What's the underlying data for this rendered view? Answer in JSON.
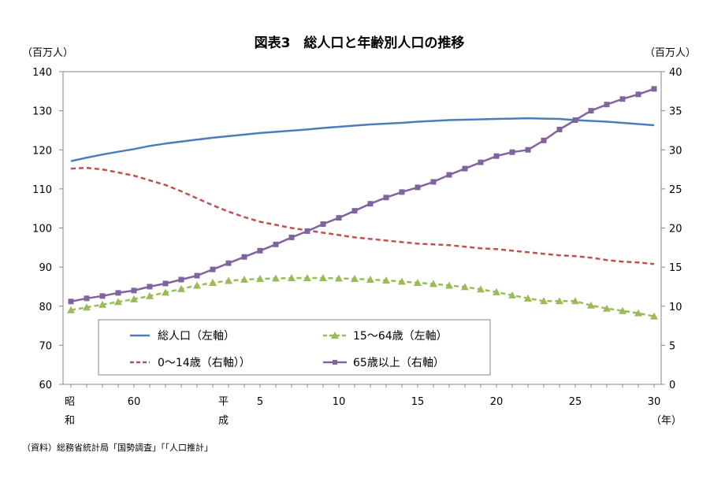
{
  "chart_data": {
    "type": "line",
    "title": "図表3　総人口と年齢別人口の推移",
    "left_unit": "（百万人）",
    "right_unit": "（百万人）",
    "year_unit": "（年）",
    "source": "（資料）総務省統計局「国勢調査」「「人口推計」",
    "era_labels": {
      "showa": [
        "昭",
        "和"
      ],
      "heisei": [
        "平",
        "成"
      ]
    },
    "x_tick_labels": [
      "60",
      "5",
      "10",
      "15",
      "20",
      "25",
      "30"
    ],
    "years": [
      "S56",
      "S57",
      "S58",
      "S59",
      "S60",
      "S61",
      "S62",
      "S63",
      "H1",
      "H2",
      "H3",
      "H4",
      "H5",
      "H6",
      "H7",
      "H8",
      "H9",
      "H10",
      "H11",
      "H12",
      "H13",
      "H14",
      "H15",
      "H16",
      "H17",
      "H18",
      "H19",
      "H20",
      "H21",
      "H22",
      "H23",
      "H24",
      "H25",
      "H26",
      "H27",
      "H28",
      "H29",
      "H30"
    ],
    "ylim_left": [
      60,
      140
    ],
    "ylim_right": [
      0,
      40
    ],
    "yticks_left": [
      "60",
      "70",
      "80",
      "90",
      "100",
      "110",
      "120",
      "130",
      "140"
    ],
    "yticks_right": [
      "0",
      "5",
      "10",
      "15",
      "20",
      "25",
      "30",
      "35",
      "40"
    ],
    "series": [
      {
        "name": "総人口（左軸）",
        "axis": "left",
        "color": "#4a7ebb",
        "style": "solid",
        "marker": "none",
        "values": [
          117.1,
          118.0,
          118.8,
          119.5,
          120.2,
          121.0,
          121.6,
          122.1,
          122.6,
          123.1,
          123.5,
          123.9,
          124.3,
          124.6,
          124.9,
          125.2,
          125.6,
          125.9,
          126.2,
          126.5,
          126.7,
          126.9,
          127.2,
          127.4,
          127.6,
          127.7,
          127.8,
          127.9,
          128.0,
          128.1,
          128.0,
          127.9,
          127.6,
          127.4,
          127.2,
          126.9,
          126.6,
          126.3
        ]
      },
      {
        "name": "15～64歳（左軸）",
        "axis": "left",
        "color": "#9bbb59",
        "style": "dashed",
        "marker": "triangle",
        "values": [
          79.0,
          79.7,
          80.4,
          81.1,
          81.8,
          82.6,
          83.5,
          84.4,
          85.3,
          86.0,
          86.5,
          86.8,
          87.0,
          87.1,
          87.2,
          87.2,
          87.2,
          87.1,
          87.0,
          86.8,
          86.6,
          86.3,
          86.0,
          85.7,
          85.3,
          84.9,
          84.3,
          83.6,
          82.8,
          82.0,
          81.3,
          81.3,
          81.3,
          80.2,
          79.4,
          78.8,
          78.2,
          77.4
        ]
      },
      {
        "name": "0～14歳（右軸））",
        "axis": "right",
        "color": "#c0504d",
        "style": "dashed",
        "marker": "none",
        "values": [
          27.6,
          27.7,
          27.5,
          27.1,
          26.7,
          26.1,
          25.5,
          24.7,
          23.8,
          22.9,
          22.1,
          21.4,
          20.8,
          20.4,
          20.0,
          19.7,
          19.4,
          19.1,
          18.8,
          18.6,
          18.4,
          18.2,
          18.0,
          17.9,
          17.8,
          17.6,
          17.4,
          17.3,
          17.1,
          16.9,
          16.7,
          16.5,
          16.4,
          16.2,
          15.9,
          15.7,
          15.6,
          15.4
        ]
      },
      {
        "name": "65歳以上（右軸）",
        "axis": "right",
        "color": "#8064a2",
        "style": "solid",
        "marker": "square",
        "values": [
          10.6,
          11.0,
          11.3,
          11.7,
          12.0,
          12.5,
          12.9,
          13.4,
          13.9,
          14.7,
          15.5,
          16.3,
          17.1,
          17.9,
          18.8,
          19.6,
          20.5,
          21.3,
          22.2,
          23.1,
          23.9,
          24.6,
          25.2,
          25.9,
          26.8,
          27.6,
          28.4,
          29.2,
          29.7,
          30.0,
          31.2,
          32.6,
          33.8,
          35.0,
          35.8,
          36.5,
          37.1,
          37.8
        ]
      }
    ],
    "legend_position": "inside-bottom-center",
    "grid": false
  }
}
